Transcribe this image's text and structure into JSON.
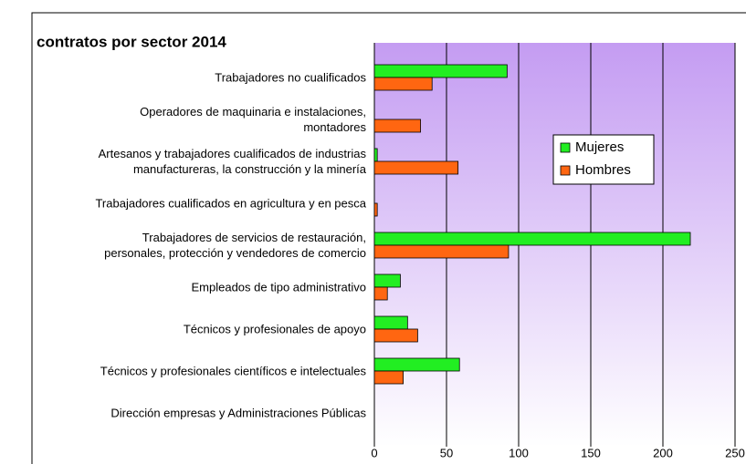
{
  "chart_data": {
    "type": "bar",
    "orientation": "horizontal",
    "title": "contratos por sector 2014",
    "categories": [
      "Trabajadores no cualificados",
      "Operadores de maquinaria e instalaciones,\nmontadores",
      "Artesanos y trabajadores cualificados de industrias\nmanufactureras, la construcción y la minería",
      "Trabajadores cualificados en agricultura y en pesca",
      "Trabajadores de servicios de restauración,\npersonales, protección y vendedores de comercio",
      "Empleados de tipo administrativo",
      "Técnicos y profesionales de apoyo",
      "Técnicos y profesionales científicos e intelectuales",
      "Dirección empresas y Administraciones Públicas"
    ],
    "series": [
      {
        "name": "Mujeres",
        "color": "#22ee22",
        "values": [
          92,
          0,
          2,
          0,
          219,
          18,
          23,
          59,
          0
        ]
      },
      {
        "name": "Hombres",
        "color": "#ff6611",
        "values": [
          40,
          32,
          58,
          2,
          93,
          9,
          30,
          20,
          0
        ]
      }
    ],
    "xlim": [
      0,
      250
    ],
    "xticks": [
      0,
      50,
      100,
      150,
      200,
      250
    ],
    "grid": true,
    "legend": "right"
  }
}
